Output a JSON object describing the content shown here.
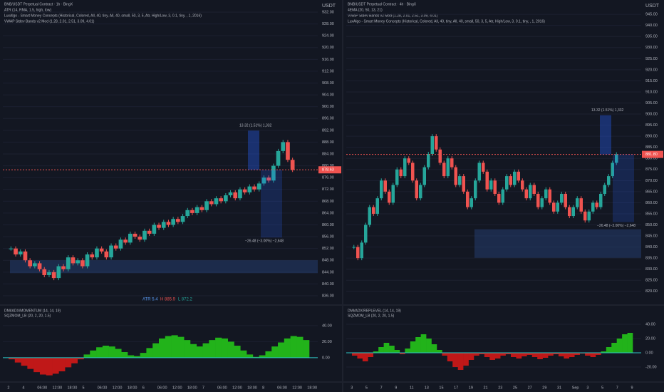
{
  "panes": [
    {
      "header": [
        "BNB/USDT Perpetual Contract · 1h · BingX",
        "ATR (14, RMA, 1.5, high, low)",
        "LuxAlgo - Smart Money Concepts (Historical, Colored, All, 40, tiny, All, 40, small, 50, 3, 5, Atr, High/Low, 3, 0.1, tiny, , 1, 2016)",
        "VWAP Stdev Bands v2 Mod (1.28, 2.01, 2.51, 3.09, 4.01)"
      ],
      "currency": "USDT",
      "price_ticks": [
        {
          "value": 932,
          "label": "932.00"
        },
        {
          "value": 928,
          "label": "928.00"
        },
        {
          "value": 924,
          "label": "924.00"
        },
        {
          "value": 920,
          "label": "920.00"
        },
        {
          "value": 916,
          "label": "916.00"
        },
        {
          "value": 912,
          "label": "912.00"
        },
        {
          "value": 908,
          "label": "908.00"
        },
        {
          "value": 904,
          "label": "904.00"
        },
        {
          "value": 900,
          "label": "900.00"
        },
        {
          "value": 896,
          "label": "896.00"
        },
        {
          "value": 892,
          "label": "892.00"
        },
        {
          "value": 888,
          "label": "888.00"
        },
        {
          "value": 884,
          "label": "884.00"
        },
        {
          "value": 880,
          "label": "880.00"
        },
        {
          "value": 876,
          "label": "876.00"
        },
        {
          "value": 872,
          "label": "872.00"
        },
        {
          "value": 868,
          "label": "868.00"
        },
        {
          "value": 864,
          "label": "864.00"
        },
        {
          "value": 860,
          "label": "860.00"
        },
        {
          "value": 856,
          "label": "856.00"
        },
        {
          "value": 852,
          "label": "852.00"
        },
        {
          "value": 848,
          "label": "848.00"
        },
        {
          "value": 844,
          "label": "844.00"
        },
        {
          "value": 840,
          "label": "840.00"
        },
        {
          "value": 836,
          "label": "836.00"
        }
      ],
      "ylim": [
        836,
        932
      ],
      "closes": [
        852,
        850,
        851,
        848,
        846,
        847,
        845,
        843,
        844,
        842,
        846,
        845,
        849,
        847,
        848,
        846,
        850,
        849,
        852,
        851,
        849,
        853,
        852,
        855,
        854,
        857,
        856,
        855,
        858,
        857,
        860,
        859,
        861,
        860,
        862,
        861,
        863,
        865,
        864,
        866,
        865,
        868,
        867,
        869,
        868,
        870,
        871,
        869,
        872,
        871,
        873,
        872,
        874,
        876,
        875,
        880,
        885,
        888,
        882,
        878.63
      ],
      "current_price": {
        "value": 878.63,
        "label": "878.63"
      },
      "measure_up": "13.32 (1.51%) 1,332",
      "measure_down": "−26.48 (−3.00%) −2,648",
      "stats": [
        "ATR 5.4",
        "H 885.9",
        "L 872.2"
      ],
      "osc_header": [
        "DMI/ADX/MOMENTUM (14, 14, 19)",
        "SQZMOM_LB (20, 2, 20, 1.5)"
      ],
      "osc_ylim": [
        -25,
        55
      ],
      "osc_ticks": [
        {
          "value": 40,
          "label": "40.00"
        },
        {
          "value": 20,
          "label": "20.00"
        },
        {
          "value": 0,
          "label": "0.00"
        }
      ],
      "osc": [
        -2,
        -6,
        -10,
        -14,
        -18,
        -21,
        -22,
        -20,
        -17,
        -12,
        -7,
        -2,
        4,
        9,
        13,
        15,
        14,
        11,
        7,
        3,
        2,
        6,
        12,
        18,
        24,
        27,
        28,
        26,
        22,
        17,
        14,
        18,
        22,
        25,
        24,
        20,
        15,
        9,
        4,
        1,
        3,
        8,
        14,
        19,
        24,
        27,
        26,
        22
      ],
      "time_labels": [
        "2",
        "4",
        "06:00",
        "12:00",
        "18:00",
        "5",
        "06:00",
        "12:00",
        "18:00",
        "6",
        "06:00",
        "12:00",
        "18:00",
        "7",
        "06:00",
        "12:00",
        "18:00",
        "8",
        "06:00",
        "12:00",
        "18:00"
      ]
    },
    {
      "header": [
        "BNB/USDT Perpetual Contract · 4h · BingX",
        "4EMA (20, 50, 13, 21)",
        "VWAP Stdev Bands v2 Mod (1.28, 2.01, 2.51, 3.09, 4.01)",
        "LuxAlgo - Smart Money Concepts (Historical, Colored, All, 40, tiny, All, 40, small, 50, 3, 5, Atr, High/Low, 3, 0.1, tiny, , 1, 2016)"
      ],
      "currency": "USDT",
      "price_ticks": [
        {
          "value": 945,
          "label": "945.00"
        },
        {
          "value": 940,
          "label": "940.00"
        },
        {
          "value": 935,
          "label": "935.00"
        },
        {
          "value": 930,
          "label": "930.00"
        },
        {
          "value": 925,
          "label": "925.00"
        },
        {
          "value": 920,
          "label": "920.00"
        },
        {
          "value": 915,
          "label": "915.00"
        },
        {
          "value": 910,
          "label": "910.00"
        },
        {
          "value": 905,
          "label": "905.00"
        },
        {
          "value": 900,
          "label": "900.00"
        },
        {
          "value": 895,
          "label": "895.00"
        },
        {
          "value": 890,
          "label": "890.00"
        },
        {
          "value": 885,
          "label": "885.00"
        },
        {
          "value": 880,
          "label": "880.00"
        },
        {
          "value": 875,
          "label": "875.00"
        },
        {
          "value": 870,
          "label": "870.00"
        },
        {
          "value": 865,
          "label": "865.00"
        },
        {
          "value": 860,
          "label": "860.00"
        },
        {
          "value": 855,
          "label": "855.00"
        },
        {
          "value": 850,
          "label": "850.00"
        },
        {
          "value": 845,
          "label": "845.00"
        },
        {
          "value": 840,
          "label": "840.00"
        },
        {
          "value": 835,
          "label": "835.00"
        },
        {
          "value": 830,
          "label": "830.00"
        },
        {
          "value": 825,
          "label": "825.00"
        },
        {
          "value": 820,
          "label": "820.00"
        }
      ],
      "ylim": [
        818,
        946
      ],
      "closes": [
        840,
        835,
        842,
        850,
        858,
        855,
        862,
        870,
        865,
        860,
        868,
        875,
        872,
        880,
        878,
        870,
        862,
        868,
        876,
        882,
        890,
        884,
        878,
        872,
        880,
        876,
        868,
        872,
        865,
        858,
        862,
        870,
        878,
        874,
        866,
        870,
        864,
        860,
        866,
        872,
        868,
        874,
        870,
        866,
        862,
        868,
        864,
        858,
        862,
        866,
        860,
        856,
        860,
        864,
        858,
        854,
        858,
        862,
        856,
        852,
        856,
        860,
        858,
        864,
        868,
        872,
        878,
        881.8
      ],
      "current_price": {
        "value": 881.8,
        "label": "881.80"
      },
      "measure_up": "13.32 (1.51%) 1,332",
      "measure_down": "−26.48 (−3.00%) −2,648",
      "stats": [],
      "osc_header": [
        "DMI/ADX/REPLEVEL (14, 14, 19)",
        "SQZMOM_LB (20, 2, 20, 1.5)"
      ],
      "osc_ylim": [
        -35,
        55
      ],
      "osc_ticks": [
        {
          "value": 40,
          "label": "40.00"
        },
        {
          "value": 20,
          "label": "20.00"
        },
        {
          "value": 0,
          "label": "0.00"
        },
        {
          "value": -20,
          "label": "-20.00"
        }
      ],
      "osc": [
        -4,
        -8,
        -12,
        -6,
        2,
        8,
        14,
        10,
        4,
        -2,
        6,
        16,
        22,
        26,
        20,
        12,
        4,
        -4,
        -12,
        -20,
        -24,
        -18,
        -10,
        -4,
        -2,
        -6,
        -10,
        -8,
        -4,
        -2,
        -6,
        -8,
        -5,
        -3,
        -6,
        -9,
        -7,
        -4,
        -2,
        -5,
        -8,
        -6,
        -3,
        -1,
        -4,
        -6,
        -3,
        2,
        8,
        14,
        20,
        26,
        28
      ],
      "time_labels": [
        "3",
        "5",
        "7",
        "9",
        "11",
        "13",
        "15",
        "17",
        "19",
        "21",
        "23",
        "25",
        "27",
        "29",
        "31",
        "Sep",
        "3",
        "5",
        "7",
        "9"
      ]
    }
  ]
}
